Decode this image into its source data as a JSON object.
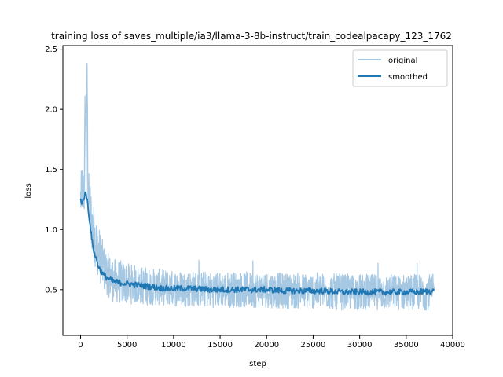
{
  "chart_data": {
    "type": "line",
    "title": "training loss of saves_multiple/ia3/llama-3-8b-instruct/train_codealpacapy_123_1762",
    "xlabel": "step",
    "ylabel": "loss",
    "xlim": [
      -1900,
      40000
    ],
    "ylim": [
      0.12,
      2.53
    ],
    "xticks": [
      0,
      5000,
      10000,
      15000,
      20000,
      25000,
      30000,
      35000,
      40000
    ],
    "xtick_labels": [
      "0",
      "5000",
      "10000",
      "15000",
      "20000",
      "25000",
      "30000",
      "35000",
      "40000"
    ],
    "yticks": [
      0.5,
      1.0,
      1.5,
      2.0,
      2.5
    ],
    "ytick_labels": [
      "0.5",
      "1.0",
      "1.5",
      "2.0",
      "2.5"
    ],
    "legend_position": "top-right",
    "series": [
      {
        "name": "original",
        "color": "#a6c8e2",
        "x": [
          0,
          200,
          400,
          500,
          600,
          700,
          800,
          1000,
          1200,
          1500,
          2000,
          2500,
          3000,
          3500,
          4000,
          4500,
          5000,
          6000,
          7000,
          8000,
          9000,
          10000,
          12000,
          14000,
          16000,
          18000,
          20000,
          22000,
          24000,
          26000,
          28000,
          30000,
          32000,
          34000,
          36000,
          38000
        ],
        "y": [
          1.25,
          1.35,
          1.3,
          2.18,
          1.4,
          2.42,
          1.3,
          1.2,
          1.05,
          0.95,
          0.8,
          0.68,
          0.62,
          0.58,
          0.57,
          0.56,
          0.55,
          0.54,
          0.53,
          0.52,
          0.52,
          0.51,
          0.51,
          0.5,
          0.5,
          0.5,
          0.5,
          0.49,
          0.49,
          0.49,
          0.48,
          0.48,
          0.48,
          0.48,
          0.48,
          0.48
        ],
        "band": [
          0.2,
          0.2,
          0.22,
          0.22,
          0.22,
          0.22,
          0.22,
          0.24,
          0.24,
          0.24,
          0.22,
          0.2,
          0.18,
          0.18,
          0.18,
          0.18,
          0.17,
          0.16,
          0.16,
          0.15,
          0.15,
          0.15,
          0.15,
          0.15,
          0.15,
          0.15,
          0.15,
          0.15,
          0.15,
          0.15,
          0.15,
          0.15,
          0.15,
          0.15,
          0.15,
          0.15
        ]
      },
      {
        "name": "smoothed",
        "color": "#1f77b4",
        "x": [
          0,
          200,
          400,
          600,
          800,
          1000,
          1200,
          1500,
          2000,
          2500,
          3000,
          3500,
          4000,
          5000,
          6000,
          7000,
          8000,
          9000,
          10000,
          12000,
          14000,
          16000,
          18000,
          20000,
          22000,
          24000,
          26000,
          28000,
          30000,
          32000,
          34000,
          36000,
          38000
        ],
        "y": [
          1.25,
          1.22,
          1.28,
          1.3,
          1.2,
          1.05,
          0.92,
          0.8,
          0.68,
          0.62,
          0.59,
          0.57,
          0.56,
          0.55,
          0.54,
          0.53,
          0.52,
          0.51,
          0.51,
          0.51,
          0.5,
          0.5,
          0.5,
          0.5,
          0.49,
          0.49,
          0.49,
          0.48,
          0.48,
          0.48,
          0.48,
          0.48,
          0.49
        ]
      }
    ]
  }
}
